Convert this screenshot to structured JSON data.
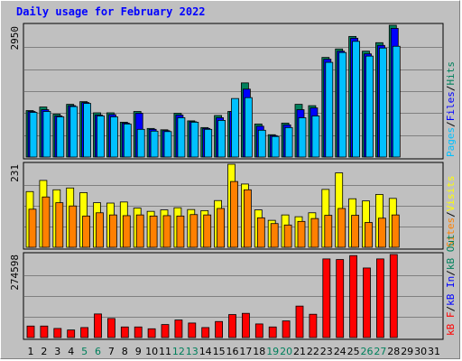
{
  "title": "Daily usage for February 2022",
  "colors": {
    "hits": "#00805c",
    "files": "#0000ff",
    "pages": "#00c0ff",
    "visits": "#ffff00",
    "sites": "#ff8000",
    "kbin": "#ff0000",
    "kbout": "#0000ff",
    "kbf": "#ff0000",
    "panel_bg": "#c0c0c0",
    "weekend_day": "#00805c"
  },
  "chart_data": [
    {
      "type": "bar",
      "panel": "top",
      "ymax_label": "2950",
      "legend": [
        "Pages",
        "/",
        "Files",
        "/",
        "Hits"
      ],
      "x": [
        1,
        2,
        3,
        4,
        5,
        6,
        7,
        8,
        9,
        10,
        11,
        12,
        13,
        14,
        15,
        16,
        17,
        18,
        19,
        20,
        21,
        22,
        23,
        24,
        25,
        26,
        27,
        28,
        29,
        30,
        31
      ],
      "series": [
        {
          "name": "Hits",
          "values": [
            1040,
            1120,
            960,
            1180,
            1240,
            990,
            990,
            780,
            1020,
            640,
            610,
            980,
            810,
            660,
            930,
            1020,
            1660,
            740,
            500,
            760,
            1180,
            1150,
            2230,
            2420,
            2700,
            2370,
            2560,
            2950,
            0,
            0,
            0
          ]
        },
        {
          "name": "Files",
          "values": [
            1020,
            1060,
            920,
            1150,
            1220,
            940,
            950,
            760,
            980,
            620,
            590,
            940,
            790,
            640,
            880,
            1020,
            1520,
            690,
            480,
            720,
            1060,
            1100,
            2190,
            2370,
            2660,
            2310,
            2500,
            2880,
            0,
            0,
            0
          ]
        },
        {
          "name": "Pages",
          "values": [
            1000,
            1020,
            900,
            1130,
            1200,
            920,
            900,
            740,
            620,
            580,
            570,
            880,
            780,
            620,
            820,
            1310,
            1330,
            600,
            460,
            660,
            880,
            920,
            2120,
            2340,
            2590,
            2260,
            2440,
            2480,
            0,
            0,
            0
          ]
        }
      ]
    },
    {
      "type": "bar",
      "panel": "middle",
      "ymax_label": "231",
      "legend": [
        "Visits",
        "/",
        "Sites"
      ],
      "x": [
        1,
        2,
        3,
        4,
        5,
        6,
        7,
        8,
        9,
        10,
        11,
        12,
        13,
        14,
        15,
        16,
        17,
        18,
        19,
        20,
        21,
        22,
        23,
        24,
        25,
        26,
        27,
        28,
        29,
        30,
        31
      ],
      "series": [
        {
          "name": "Visits",
          "values": [
            155,
            186,
            160,
            165,
            152,
            124,
            123,
            126,
            109,
            100,
            104,
            110,
            105,
            102,
            130,
            231,
            176,
            104,
            75,
            90,
            85,
            96,
            161,
            207,
            135,
            129,
            147,
            136,
            0,
            0,
            0
          ]
        },
        {
          "name": "Sites",
          "values": [
            106,
            140,
            124,
            115,
            87,
            96,
            90,
            88,
            90,
            87,
            88,
            87,
            91,
            90,
            108,
            183,
            160,
            82,
            66,
            62,
            72,
            80,
            89,
            108,
            89,
            69,
            81,
            90,
            0,
            0,
            0
          ]
        }
      ]
    },
    {
      "type": "bar",
      "panel": "bottom",
      "ymax_label": "274598",
      "legend": [
        "kB F",
        "/",
        "kB In",
        "/",
        "kB Out"
      ],
      "x": [
        1,
        2,
        3,
        4,
        5,
        6,
        7,
        8,
        9,
        10,
        11,
        12,
        13,
        14,
        15,
        16,
        17,
        18,
        19,
        20,
        21,
        22,
        23,
        24,
        25,
        26,
        27,
        28,
        29,
        30,
        31
      ],
      "series": [
        {
          "name": "kB F",
          "values": [
            38000,
            38000,
            30000,
            25000,
            33000,
            78000,
            63000,
            35000,
            35000,
            29000,
            43000,
            58000,
            48000,
            33000,
            53000,
            76000,
            80000,
            45000,
            35000,
            55000,
            104000,
            77000,
            260000,
            258000,
            271000,
            230000,
            260000,
            274598,
            0,
            0,
            0
          ]
        }
      ]
    }
  ],
  "x_labels": [
    {
      "text": "1",
      "weekend": false
    },
    {
      "text": "2",
      "weekend": false
    },
    {
      "text": "3",
      "weekend": false
    },
    {
      "text": "4",
      "weekend": false
    },
    {
      "text": "5",
      "weekend": true
    },
    {
      "text": "6",
      "weekend": true
    },
    {
      "text": "7",
      "weekend": false
    },
    {
      "text": "8",
      "weekend": false
    },
    {
      "text": "9",
      "weekend": false
    },
    {
      "text": "10",
      "weekend": false
    },
    {
      "text": "11",
      "weekend": false
    },
    {
      "text": "12",
      "weekend": true
    },
    {
      "text": "13",
      "weekend": true
    },
    {
      "text": "14",
      "weekend": false
    },
    {
      "text": "15",
      "weekend": false
    },
    {
      "text": "16",
      "weekend": false
    },
    {
      "text": "17",
      "weekend": false
    },
    {
      "text": "18",
      "weekend": false
    },
    {
      "text": "19",
      "weekend": true
    },
    {
      "text": "20",
      "weekend": true
    },
    {
      "text": "21",
      "weekend": false
    },
    {
      "text": "22",
      "weekend": false
    },
    {
      "text": "23",
      "weekend": false
    },
    {
      "text": "24",
      "weekend": false
    },
    {
      "text": "25",
      "weekend": false
    },
    {
      "text": "26",
      "weekend": true
    },
    {
      "text": "27",
      "weekend": true
    },
    {
      "text": "28",
      "weekend": false
    },
    {
      "text": "29",
      "weekend": false
    },
    {
      "text": "30",
      "weekend": false
    },
    {
      "text": "31",
      "weekend": false
    }
  ]
}
